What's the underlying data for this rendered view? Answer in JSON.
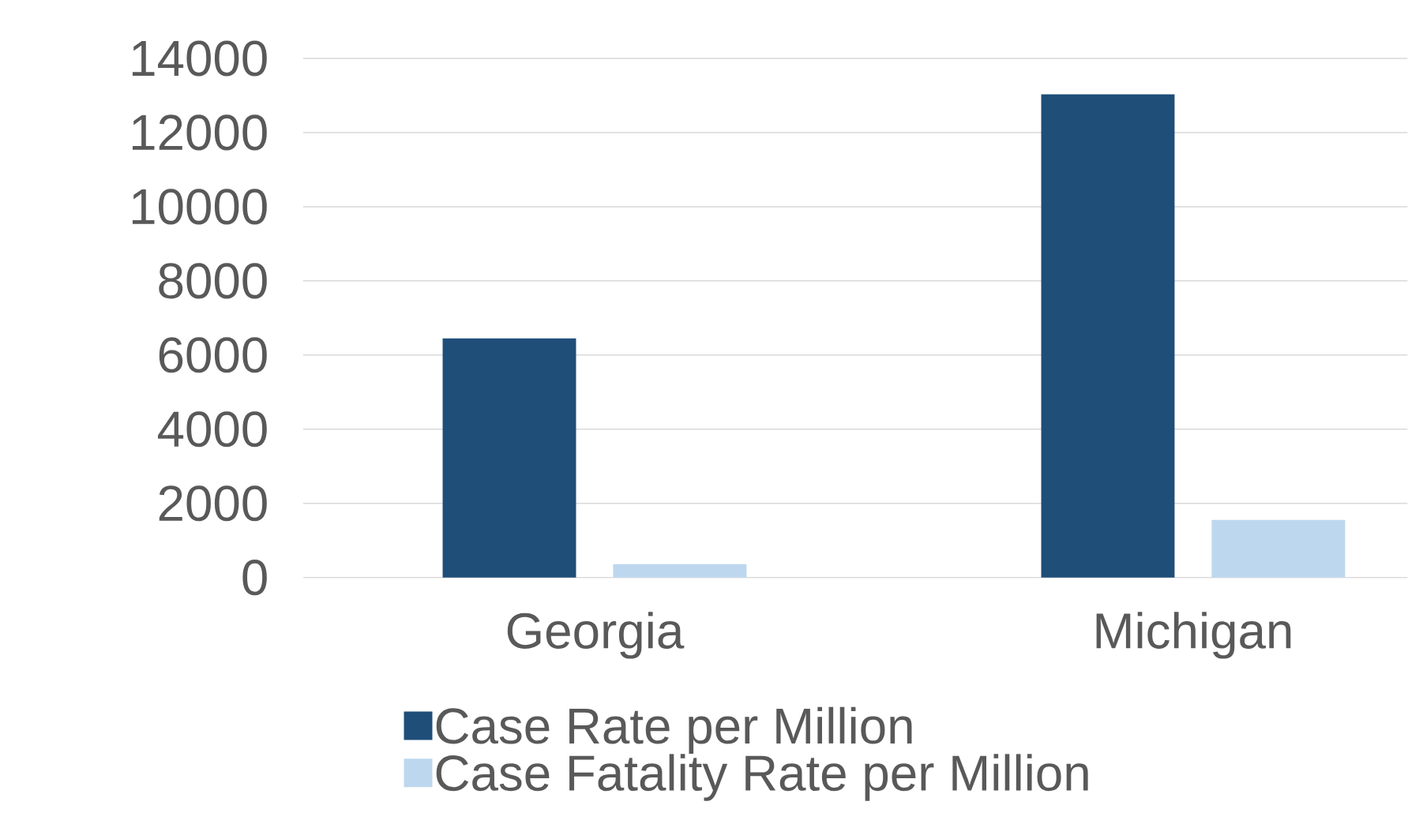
{
  "chart_data": {
    "type": "bar",
    "categories": [
      "Georgia",
      "Michigan"
    ],
    "series": [
      {
        "name": "Case Rate per Million",
        "color": "#1f4e79",
        "values": [
          6450,
          13030
        ]
      },
      {
        "name": "Case Fatality Rate per Million",
        "color": "#bdd7ee",
        "values": [
          360,
          1550
        ]
      }
    ],
    "ylim": [
      0,
      14000
    ],
    "yticks": [
      0,
      2000,
      4000,
      6000,
      8000,
      10000,
      12000,
      14000
    ],
    "grid": "y",
    "legend": "bottom"
  }
}
